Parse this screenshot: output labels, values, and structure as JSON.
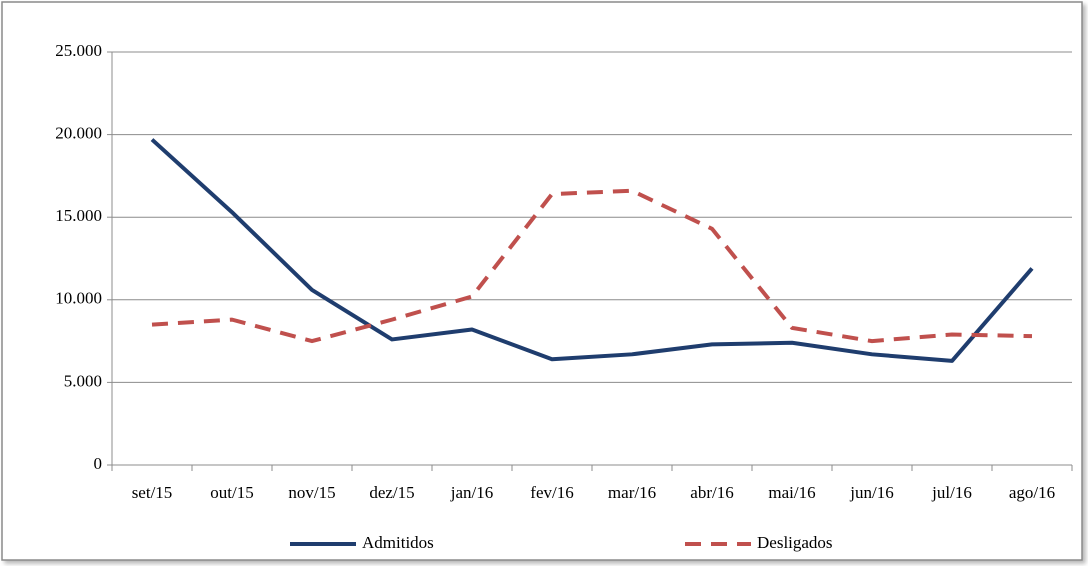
{
  "chart_data": {
    "type": "line",
    "categories": [
      "set/15",
      "out/15",
      "nov/15",
      "dez/15",
      "jan/16",
      "fev/16",
      "mar/16",
      "abr/16",
      "mai/16",
      "jun/16",
      "jul/16",
      "ago/16"
    ],
    "series": [
      {
        "name": "Admitidos",
        "color": "#1f3d6e",
        "style": "solid",
        "values": [
          19700,
          15300,
          10600,
          7600,
          8200,
          6400,
          6700,
          7300,
          7400,
          6700,
          6300,
          11900
        ]
      },
      {
        "name": "Desligados",
        "color": "#c0504d",
        "style": "dashed",
        "values": [
          8500,
          8800,
          7500,
          8800,
          10200,
          16400,
          16600,
          14300,
          8300,
          7500,
          7900,
          7800
        ]
      }
    ],
    "ylim": [
      0,
      25000
    ],
    "yticks": [
      0,
      {
        "value": 5000,
        "label": "5.000"
      },
      {
        "value": 10000,
        "label": "10.000"
      },
      {
        "value": 15000,
        "label": "15.000"
      },
      {
        "value": 20000,
        "label": "20.000"
      },
      {
        "value": 25000,
        "label": "25.000"
      }
    ],
    "grid": true,
    "legend": "bottom"
  }
}
